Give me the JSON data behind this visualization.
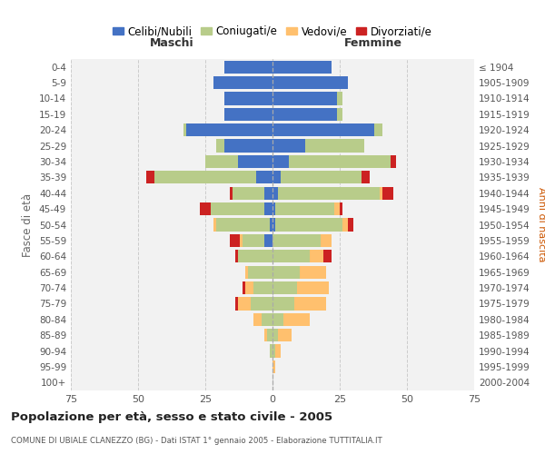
{
  "age_groups": [
    "0-4",
    "5-9",
    "10-14",
    "15-19",
    "20-24",
    "25-29",
    "30-34",
    "35-39",
    "40-44",
    "45-49",
    "50-54",
    "55-59",
    "60-64",
    "65-69",
    "70-74",
    "75-79",
    "80-84",
    "85-89",
    "90-94",
    "95-99",
    "100+"
  ],
  "birth_years": [
    "2000-2004",
    "1995-1999",
    "1990-1994",
    "1985-1989",
    "1980-1984",
    "1975-1979",
    "1970-1974",
    "1965-1969",
    "1960-1964",
    "1955-1959",
    "1950-1954",
    "1945-1949",
    "1940-1944",
    "1935-1939",
    "1930-1934",
    "1925-1929",
    "1920-1924",
    "1915-1919",
    "1910-1914",
    "1905-1909",
    "≤ 1904"
  ],
  "males": {
    "celibi": [
      18,
      22,
      18,
      18,
      32,
      18,
      13,
      6,
      3,
      3,
      1,
      3,
      0,
      0,
      0,
      0,
      0,
      0,
      0,
      0,
      0
    ],
    "coniugati": [
      0,
      0,
      0,
      0,
      1,
      3,
      12,
      38,
      12,
      20,
      20,
      8,
      13,
      9,
      7,
      8,
      4,
      2,
      1,
      0,
      0
    ],
    "vedovi": [
      0,
      0,
      0,
      0,
      0,
      0,
      0,
      0,
      0,
      0,
      1,
      1,
      0,
      1,
      3,
      5,
      3,
      1,
      0,
      0,
      0
    ],
    "divorziati": [
      0,
      0,
      0,
      0,
      0,
      0,
      0,
      3,
      1,
      4,
      0,
      4,
      1,
      0,
      1,
      1,
      0,
      0,
      0,
      0,
      0
    ]
  },
  "females": {
    "nubili": [
      22,
      28,
      24,
      24,
      38,
      12,
      6,
      3,
      2,
      1,
      1,
      0,
      0,
      0,
      0,
      0,
      0,
      0,
      0,
      0,
      0
    ],
    "coniugate": [
      0,
      0,
      2,
      2,
      3,
      22,
      38,
      30,
      38,
      22,
      25,
      18,
      14,
      10,
      9,
      8,
      4,
      2,
      1,
      0,
      0
    ],
    "vedove": [
      0,
      0,
      0,
      0,
      0,
      0,
      0,
      0,
      1,
      2,
      2,
      4,
      5,
      10,
      12,
      12,
      10,
      5,
      2,
      1,
      0
    ],
    "divorziate": [
      0,
      0,
      0,
      0,
      0,
      0,
      2,
      3,
      4,
      1,
      2,
      0,
      3,
      0,
      0,
      0,
      0,
      0,
      0,
      0,
      0
    ]
  },
  "colors": {
    "celibi": "#4472c4",
    "coniugati": "#b8cc8a",
    "vedovi": "#ffc06e",
    "divorziati": "#cc2222"
  },
  "title": "Popolazione per età, sesso e stato civile - 2005",
  "subtitle": "COMUNE DI UBIALE CLANEZZO (BG) - Dati ISTAT 1° gennaio 2005 - Elaborazione TUTTITALIA.IT",
  "xlabel_left": "Maschi",
  "xlabel_right": "Femmine",
  "ylabel_left": "Fasce di età",
  "ylabel_right": "Anni di nascita",
  "xlim": 75,
  "background_color": "#ffffff",
  "plot_bg_color": "#f2f2f2",
  "grid_color": "#cccccc",
  "legend_labels": [
    "Celibi/Nubili",
    "Coniugati/e",
    "Vedovi/e",
    "Divorziati/e"
  ]
}
